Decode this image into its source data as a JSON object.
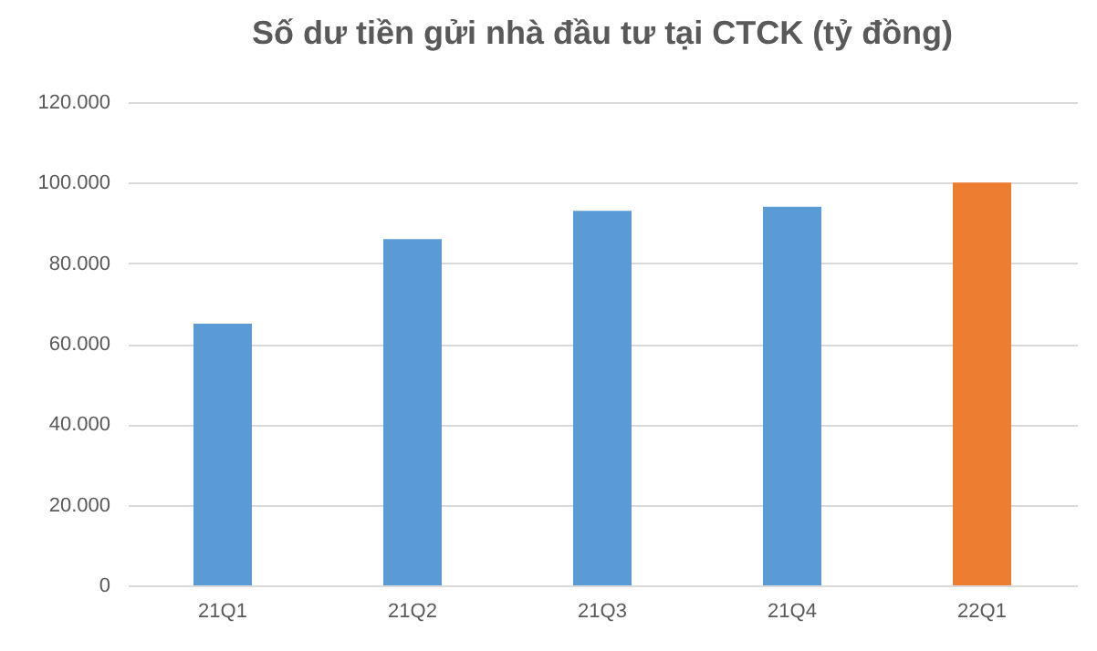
{
  "chart_data": {
    "type": "bar",
    "title": "Số dư tiền gửi nhà đầu tư tại CTCK (tỷ đồng)",
    "categories": [
      "21Q1",
      "21Q2",
      "21Q3",
      "21Q4",
      "22Q1"
    ],
    "values": [
      65000,
      86000,
      93000,
      94000,
      100000
    ],
    "colors": [
      "#5b9bd5",
      "#5b9bd5",
      "#5b9bd5",
      "#5b9bd5",
      "#ed7d31"
    ],
    "ylim": [
      0,
      120000
    ],
    "yticks": [
      {
        "value": 0,
        "label": "0"
      },
      {
        "value": 20000,
        "label": "20.000"
      },
      {
        "value": 40000,
        "label": "40.000"
      },
      {
        "value": 60000,
        "label": "60.000"
      },
      {
        "value": 80000,
        "label": "80.000"
      },
      {
        "value": 100000,
        "label": "100.000"
      },
      {
        "value": 120000,
        "label": "120.000"
      }
    ],
    "grid": "y"
  }
}
